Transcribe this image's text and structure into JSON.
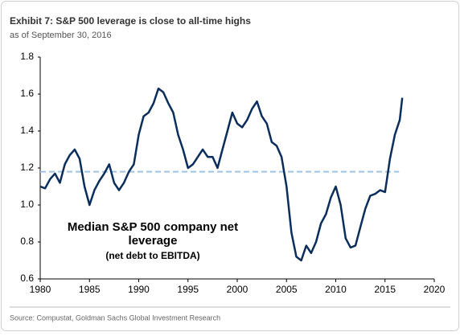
{
  "chart_data": {
    "type": "line",
    "title": "Exhibit 7: S&P 500 leverage is close to all-time highs",
    "subtitle": "as of September 30, 2016",
    "annotation": [
      "Median S&P 500 company net",
      "leverage",
      "(net debt to EBITDA)"
    ],
    "source": "Source: Compustat, Goldman Sachs Global Investment Research",
    "x": [
      1980,
      1980.5,
      1981,
      1981.5,
      1982,
      1982.5,
      1983,
      1983.5,
      1984,
      1984.5,
      1985,
      1985.5,
      1986,
      1986.5,
      1987,
      1987.5,
      1988,
      1988.5,
      1989,
      1989.5,
      1990,
      1990.5,
      1991,
      1991.5,
      1992,
      1992.5,
      1993,
      1993.5,
      1994,
      1994.5,
      1995,
      1995.5,
      1996,
      1996.5,
      1997,
      1997.5,
      1998,
      1998.5,
      1999,
      1999.5,
      2000,
      2000.5,
      2001,
      2001.5,
      2002,
      2002.5,
      2003,
      2003.5,
      2004,
      2004.5,
      2005,
      2005.5,
      2006,
      2006.5,
      2007,
      2007.5,
      2008,
      2008.5,
      2009,
      2009.5,
      2010,
      2010.5,
      2011,
      2011.5,
      2012,
      2012.5,
      2013,
      2013.5,
      2014,
      2014.5,
      2015,
      2015.5,
      2016,
      2016.5,
      2016.75
    ],
    "series": [
      {
        "color": "#0b2d5c",
        "values": [
          1.1,
          1.09,
          1.14,
          1.17,
          1.12,
          1.22,
          1.27,
          1.3,
          1.25,
          1.1,
          1.0,
          1.08,
          1.13,
          1.17,
          1.22,
          1.12,
          1.08,
          1.12,
          1.18,
          1.22,
          1.38,
          1.48,
          1.5,
          1.55,
          1.63,
          1.61,
          1.55,
          1.5,
          1.38,
          1.3,
          1.2,
          1.22,
          1.26,
          1.3,
          1.26,
          1.26,
          1.2,
          1.3,
          1.4,
          1.5,
          1.44,
          1.42,
          1.46,
          1.52,
          1.56,
          1.48,
          1.44,
          1.34,
          1.32,
          1.26,
          1.1,
          0.85,
          0.72,
          0.7,
          0.78,
          0.74,
          0.8,
          0.9,
          0.95,
          1.04,
          1.1,
          1.0,
          0.82,
          0.77,
          0.78,
          0.88,
          0.98,
          1.05,
          1.06,
          1.08,
          1.07,
          1.25,
          1.38,
          1.46,
          1.58
        ]
      }
    ],
    "reference_line": {
      "value": 1.18,
      "color": "#9dc3e6"
    },
    "xlim": [
      1980,
      2020
    ],
    "xticks": [
      1980,
      1985,
      1990,
      1995,
      2000,
      2005,
      2010,
      2015,
      2020
    ],
    "ylim": [
      0.6,
      1.8
    ],
    "yticks": [
      0.6,
      0.8,
      {
        "value": 1,
        "label": "1.0"
      },
      1.2,
      1.4,
      1.6,
      1.8
    ]
  }
}
